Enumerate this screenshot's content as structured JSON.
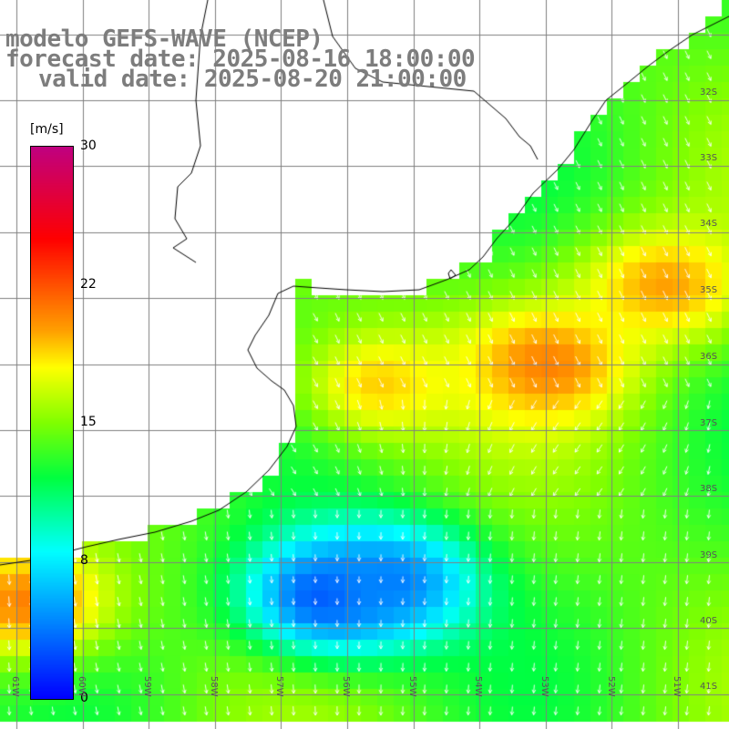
{
  "title": {
    "line1": "modelo GEFS-WAVE (NCEP)",
    "line2": "forecast date: 2025-08-16 18:00:00",
    "line3": "valid date: 2025-08-20 21:00:00"
  },
  "colorbar": {
    "unit": "[m/s]",
    "ticks": [
      "30",
      "22",
      "15",
      "8",
      "0"
    ],
    "tick_values": [
      30,
      22,
      15,
      8,
      0
    ],
    "min": 0,
    "max": 30,
    "stops": [
      {
        "v": 0,
        "color": "#0000ff"
      },
      {
        "v": 4,
        "color": "#0080ff"
      },
      {
        "v": 8,
        "color": "#00ffff"
      },
      {
        "v": 12,
        "color": "#00ff40"
      },
      {
        "v": 15,
        "color": "#80ff00"
      },
      {
        "v": 18,
        "color": "#ffff00"
      },
      {
        "v": 20,
        "color": "#ffa000"
      },
      {
        "v": 22,
        "color": "#ff6000"
      },
      {
        "v": 25,
        "color": "#ff0000"
      },
      {
        "v": 30,
        "color": "#c00080"
      }
    ]
  },
  "lat_labels": [
    "32S",
    "33S",
    "34S",
    "35S",
    "36S",
    "37S",
    "38S",
    "39S",
    "40S",
    "41S"
  ],
  "lon_labels": [
    "61W",
    "60W",
    "59W",
    "58W",
    "57W",
    "56W",
    "55W",
    "54W",
    "53W",
    "52W",
    "51W"
  ],
  "colors": {
    "land": "#ffffff",
    "grid": "#808080",
    "coast": "#000000",
    "arrow": "#ffffff",
    "title": "#7d7d7d"
  },
  "wind_field": {
    "description": "gridded wind speed (m/s) with direction arrows",
    "lon_range": [
      -61,
      -50
    ],
    "lat_range": [
      -41,
      -31
    ],
    "speed_centers": [
      {
        "lon": -56.3,
        "lat": -39.5,
        "speed": 2
      },
      {
        "lon": -55.3,
        "lat": -39.3,
        "speed": 4
      },
      {
        "lon": -53.0,
        "lat": -36.0,
        "speed": 21
      },
      {
        "lon": -51.2,
        "lat": -34.8,
        "speed": 20
      },
      {
        "lon": -60.8,
        "lat": -39.6,
        "speed": 21
      },
      {
        "lon": -55.5,
        "lat": -36.3,
        "speed": 19
      }
    ]
  }
}
